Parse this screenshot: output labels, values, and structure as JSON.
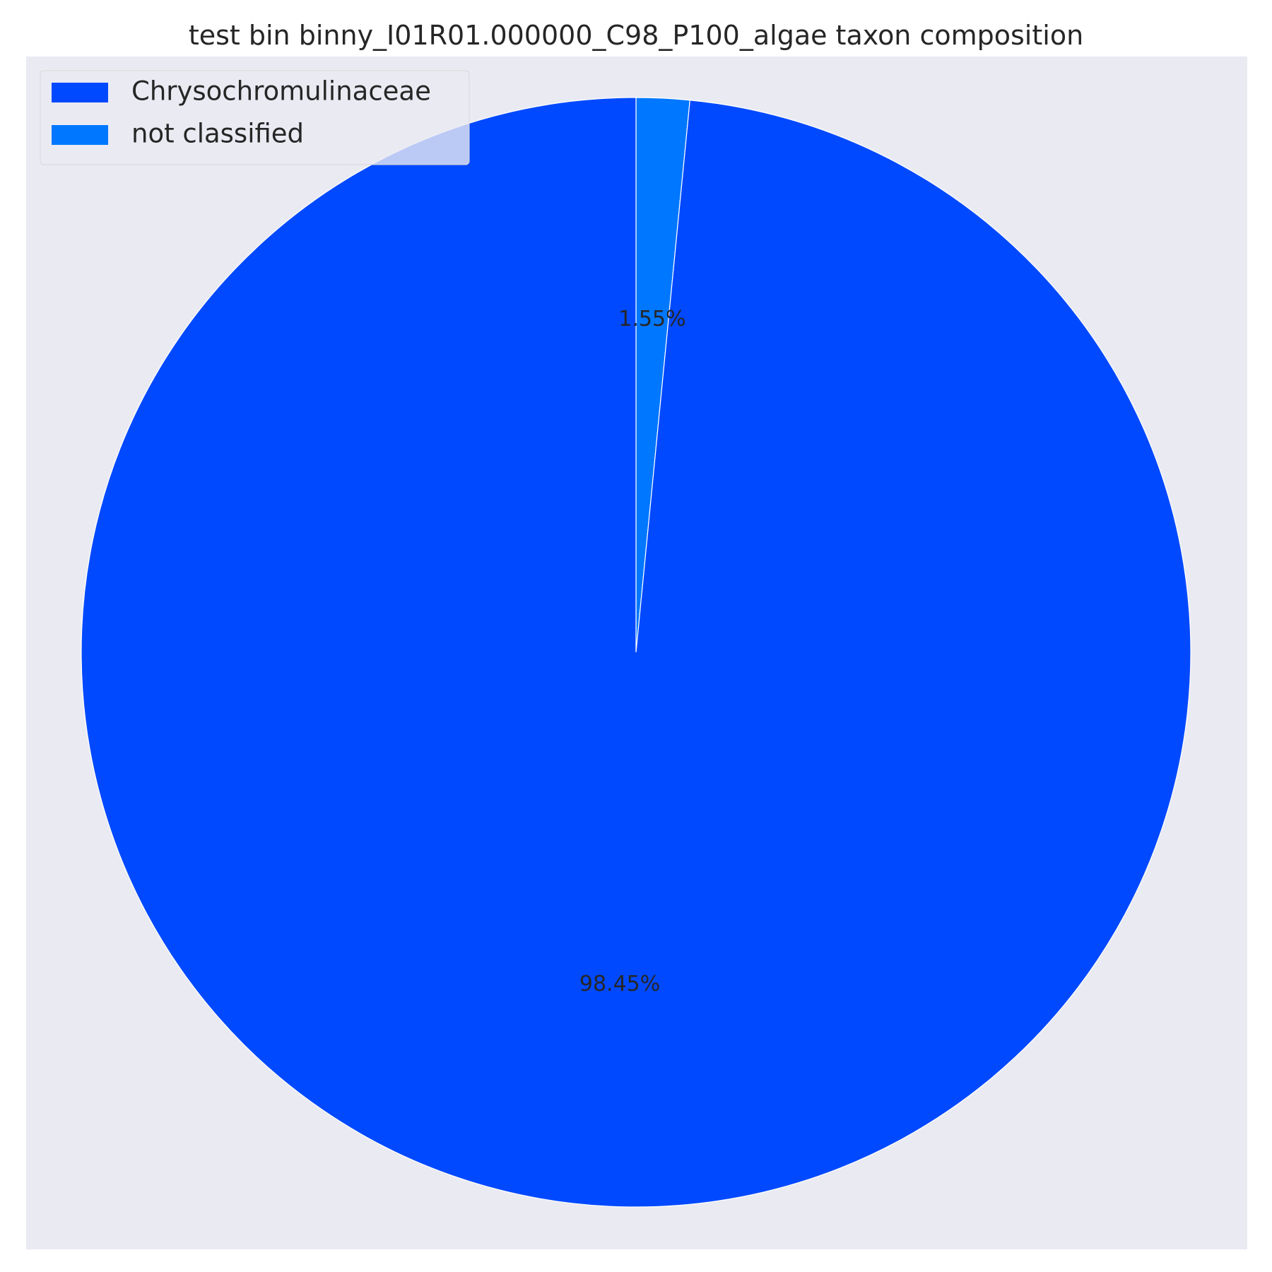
{
  "chart_data": {
    "type": "pie",
    "title": "test bin binny_I01R01.000000_C98_P100_algae taxon composition",
    "slices": [
      {
        "label": "Chrysochromulinaceae",
        "value": 98.45,
        "pct_label": "98.45%",
        "color": "#0049ff"
      },
      {
        "label": "not classified",
        "value": 1.55,
        "pct_label": "1.55%",
        "color": "#0077ff"
      }
    ],
    "start": "12 o'clock",
    "direction": "counterclockwise",
    "legend_position": "top-left",
    "background": "#eaeaf2"
  }
}
